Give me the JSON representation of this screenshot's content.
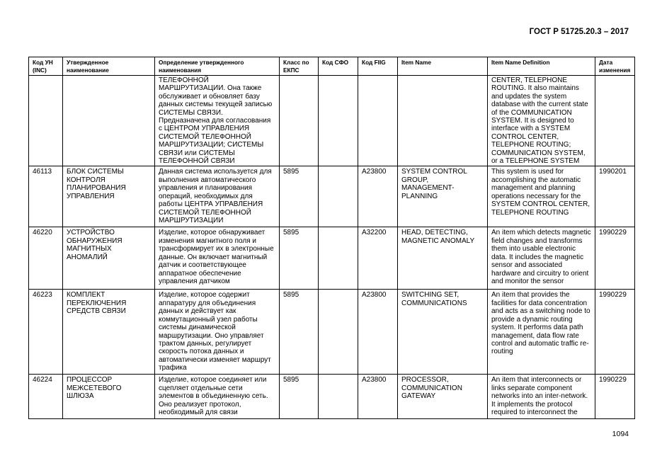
{
  "header": {
    "doc_id": "ГОСТ Р 51725.20.3 – 2017"
  },
  "footer": {
    "page_number": "1094"
  },
  "table": {
    "columns": [
      "Код УН\n(INC)",
      "Утвержденное\nнаименование",
      "Определение утвержденного\nнаименования",
      "Класс по\nЕКПС",
      "Код СФО",
      "Код FIIG",
      "Item Name",
      "Item Name Definition",
      "Дата\nизменения"
    ],
    "rows": [
      [
        "",
        "",
        "ТЕЛЕФОННОЙ\nМАРШРУТИЗАЦИИ. Она также\nобслуживает и обновляет базу\nданных системы текущей записью\nСИСТЕМЫ СВЯЗИ.\nПредназначена для согласования\nс ЦЕНТРОМ УПРАВЛЕНИЯ\nСИСТЕМОЙ ТЕЛЕФОННОЙ\nМАРШРУТИЗАЦИИ; СИСТЕМЫ\nСВЯЗИ или СИСТЕМЫ\nТЕЛЕФОННОЙ СВЯЗИ",
        "",
        "",
        "",
        "",
        "CENTER, TELEPHONE\nROUTING. It also maintains\nand updates the system\ndatabase with the current state\nof the COMMUNICATION\nSYSTEM. It is designed to\ninterface with a SYSTEM\nCONTROL CENTER,\nTELEPHONE ROUTING;\nCOMMUNICATION SYSTEM,\nor a TELEPHONE SYSTEM",
        ""
      ],
      [
        "46113",
        "БЛОК СИСТЕМЫ\nКОНТРОЛЯ\nПЛАНИРОВАНИЯ\nУПРАВЛЕНИЯ",
        "Данная система используется для\nвыполнения автоматического\nуправления и планирования\nопераций, необходимых для\nработы ЦЕНТРА УПРАВЛЕНИЯ\nСИСТЕМОЙ ТЕЛЕФОННОЙ\nМАРШРУТИЗАЦИИ",
        "5895",
        "",
        "A23800",
        "SYSTEM CONTROL\nGROUP,\nMANAGEMENT-\nPLANNING",
        "This system is used for\naccomplishing the automatic\nmanagement and planning\noperations necessary for the\nSYSTEM CONTROL CENTER,\nTELEPHONE ROUTING",
        "1990201"
      ],
      [
        "46220",
        "УСТРОЙСТВО\nОБНАРУЖЕНИЯ\nМАГНИТНЫХ\nАНОМАЛИЙ",
        "Изделие, которое обнаруживает\nизменения магнитного поля и\nтрансформирует их в электронные\nданные. Он включает магнитный\nдатчик и соответствующее\nаппаратное обеспечение\nуправления датчиком",
        "5895",
        "",
        "A32200",
        "HEAD, DETECTING,\nMAGNETIC ANOMALY",
        "An item which detects magnetic\nfield changes and transforms\nthem into usable electronic\ndata. It includes the magnetic\nsensor and associated\nhardware and circuitry to orient\nand monitor the sensor",
        "1990229"
      ],
      [
        "46223",
        "КОМПЛЕКТ\nПЕРЕКЛЮЧЕНИЯ\nСРЕДСТВ СВЯЗИ",
        "Изделие, которое содержит\nаппаратуру для объединения\nданных и действует как\nкоммутационный узел работы\nсистемы динамической\nмаршрутизации. Оно управляет\nтрактом данных, регулирует\nскорость потока данных и\nавтоматически изменяет маршрут\nтрафика",
        "5895",
        "",
        "A23800",
        "SWITCHING SET,\nCOMMUNICATIONS",
        "An item that provides the\nfacilities for data concentration\nand acts as a switching node to\nprovide a dynamic routing\nsystem. It performs data path\nmanagement, data flow rate\ncontrol and automatic traffic re-\nrouting",
        "1990229"
      ],
      [
        "46224",
        "ПРОЦЕССОР\nМЕЖСЕТЕВОГО\nШЛЮЗА",
        "Изделие, которое соединяет или\nсцепляет отдельные сети\nэлементов в объединенную сеть.\nОно реализует протокол,\nнеобходимый для связи",
        "5895",
        "",
        "A23800",
        "PROCESSOR,\nCOMMUNICATION\nGATEWAY",
        "An item that interconnects or\nlinks separate component\nnetworks into an inter-network.\nIt implements the protocol\nrequired to interconnect the",
        "1990229"
      ]
    ]
  }
}
